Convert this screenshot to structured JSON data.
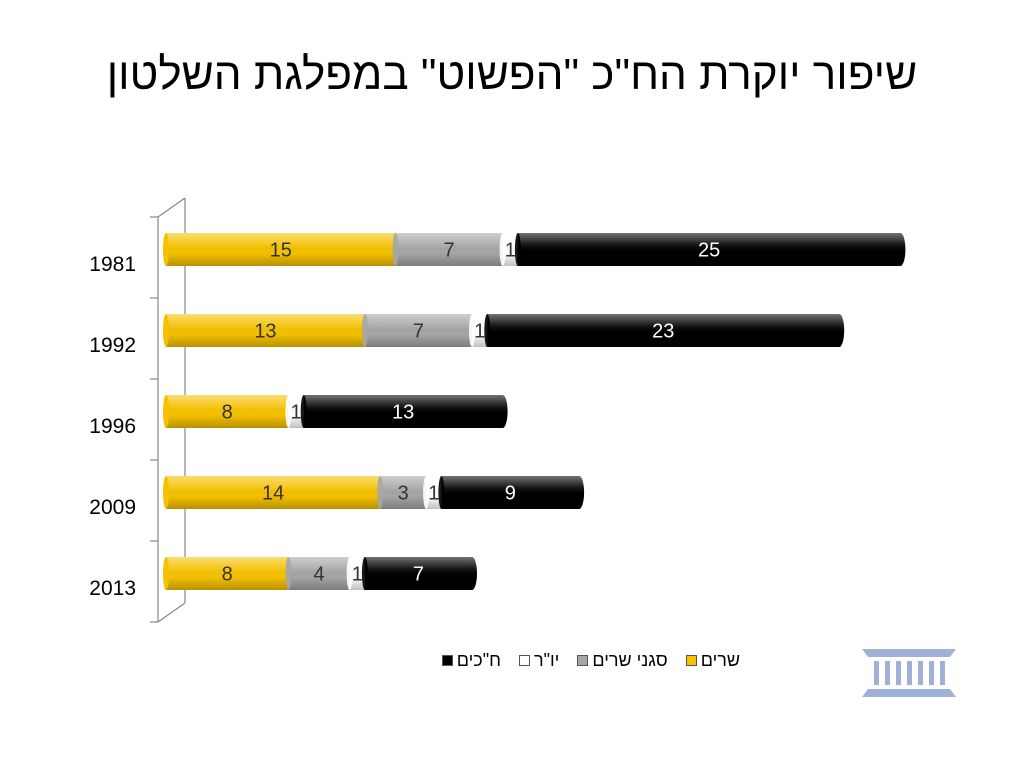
{
  "title": "שיפור יוקרת הח\"כ \"הפשוט\" במפלגת השלטון",
  "chart_data": {
    "type": "bar",
    "orientation": "horizontal",
    "stacked": true,
    "categories": [
      "1981",
      "1992",
      "1996",
      "2009",
      "2013"
    ],
    "series": [
      {
        "name": "שרים",
        "color": "#F5C100",
        "values": [
          15,
          13,
          8,
          14,
          8
        ]
      },
      {
        "name": "סגני שרים",
        "color": "#A6A6A6",
        "values": [
          7,
          7,
          0,
          3,
          4
        ]
      },
      {
        "name": "יו\"ר",
        "color": "#FFFFFF",
        "values": [
          1,
          1,
          1,
          1,
          1
        ]
      },
      {
        "name": "ח\"כים",
        "color": "#000000",
        "values": [
          25,
          23,
          13,
          9,
          7
        ]
      }
    ],
    "xlim": [
      0,
      48
    ],
    "grid": false,
    "legend_position": "bottom"
  },
  "logo": {
    "icon": "knesset-building-icon",
    "color": "#9FB1D6"
  }
}
